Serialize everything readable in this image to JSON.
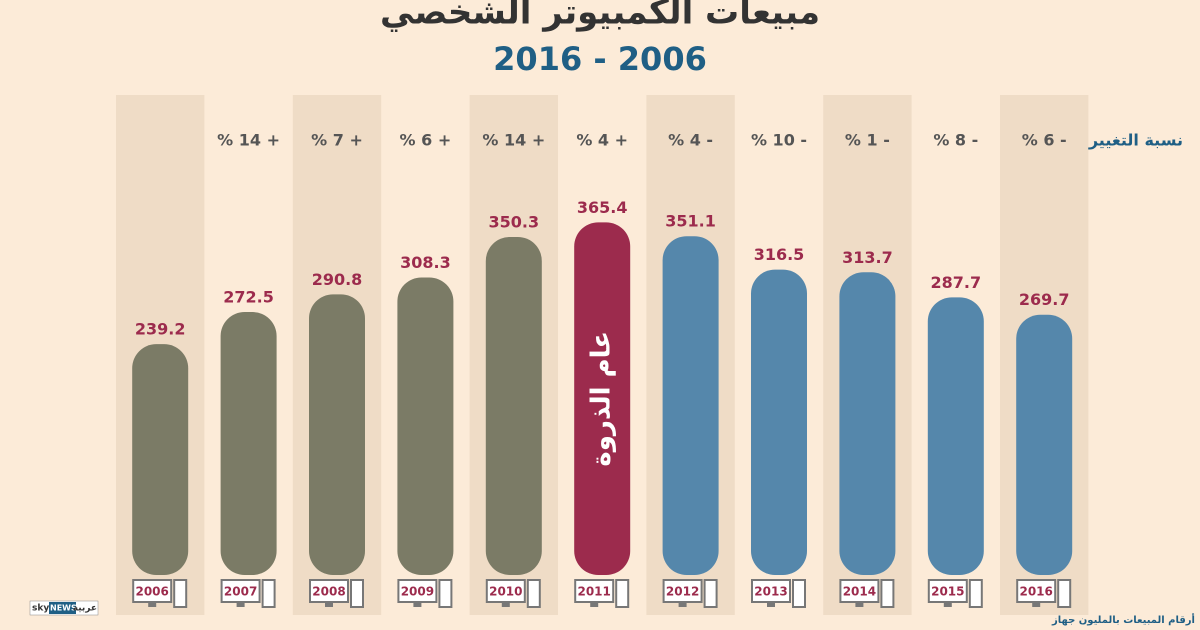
{
  "chart_data": {
    "type": "bar",
    "title": "مبيعات الكمبيوتر الشخصي",
    "subtitle": "2016 - 2006",
    "categories": [
      "2006",
      "2007",
      "2008",
      "2009",
      "2010",
      "2011",
      "2012",
      "2013",
      "2014",
      "2015",
      "2016"
    ],
    "values": [
      239.2,
      272.5,
      290.8,
      308.3,
      350.3,
      365.4,
      351.1,
      316.5,
      313.7,
      287.7,
      269.7
    ],
    "colors": [
      "#7b7b66",
      "#7b7b66",
      "#7b7b66",
      "#7b7b66",
      "#7b7b66",
      "#9c2b4d",
      "#5587ab",
      "#5587ab",
      "#5587ab",
      "#5587ab",
      "#5587ab"
    ],
    "ylim": [
      0,
      400
    ],
    "change_title": "نسبة التغيير",
    "changes": [
      null,
      "% 14 +",
      "% 7 +",
      "% 6 +",
      "% 14 +",
      "% 4 +",
      "% 4 -",
      "% 10 -",
      "% 1 -",
      "% 8 -",
      "% 6 -"
    ],
    "peak_label": "عام الذروة",
    "note": "أرقام المبيعات بالمليون جهاز",
    "logo": [
      "sky",
      "NEWS",
      "عربية"
    ]
  }
}
